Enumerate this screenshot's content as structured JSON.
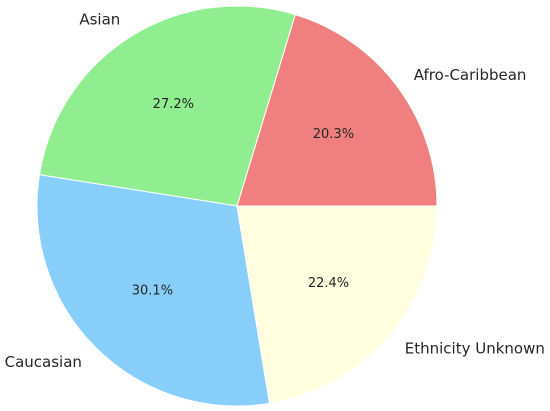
{
  "chart_data": {
    "type": "pie",
    "title": "",
    "start_angle_deg": 0,
    "direction": "counterclockwise",
    "slices": [
      {
        "label": "Afro-Caribbean",
        "value": 20.3,
        "pct_label": "20.3%",
        "color": "#f08080"
      },
      {
        "label": "Asian",
        "value": 27.2,
        "pct_label": "27.2%",
        "color": "#90ee90"
      },
      {
        "label": "Caucasian",
        "value": 30.1,
        "pct_label": "30.1%",
        "color": "#87cefa"
      },
      {
        "label": "Ethnicity Unknown",
        "value": 22.4,
        "pct_label": "22.4%",
        "color": "#ffffe0"
      }
    ]
  }
}
